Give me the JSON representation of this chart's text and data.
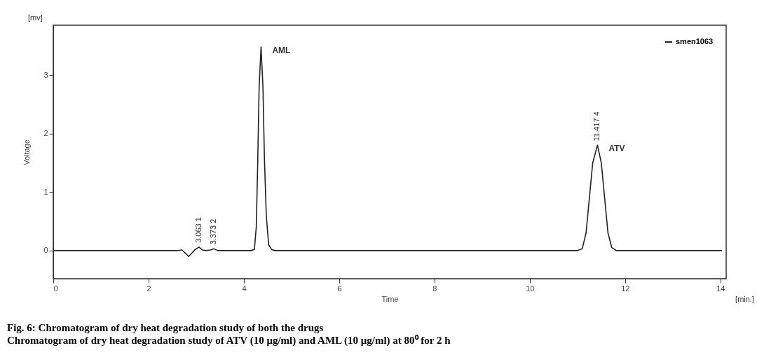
{
  "chart_data": {
    "type": "line",
    "title": "Fig. 6: Chromatogram of dry heat degradation study of both the drugs",
    "subtitle": "Chromatogram of dry heat degradation study of ATV (10 μg/ml) and AML (10 μg/ml) at 80⁰ for 2 h",
    "xlabel": "Time",
    "ylabel": "Voltage",
    "xlim": [
      0,
      14.12
    ],
    "xticks": [
      0,
      2,
      4,
      6,
      8,
      10,
      12,
      14
    ],
    "ylim": [
      -0.48,
      3.85
    ],
    "yticks": [
      0,
      1,
      2,
      3
    ],
    "grid": false,
    "legend": "top right",
    "marker": "none",
    "line_style": "solid",
    "series": [
      {
        "name": "smen1063",
        "color": "#222222",
        "x": [
          0,
          2.6,
          2.7,
          2.78,
          2.84,
          2.9,
          2.98,
          3.06,
          3.13,
          3.2,
          3.3,
          3.37,
          3.45,
          3.6,
          4.0,
          4.15,
          4.22,
          4.26,
          4.29,
          4.32,
          4.36,
          4.4,
          4.43,
          4.47,
          4.52,
          4.58,
          4.65,
          6,
          8,
          10,
          11.0,
          11.1,
          11.18,
          11.25,
          11.32,
          11.42,
          11.5,
          11.57,
          11.64,
          11.72,
          11.82,
          14.03
        ],
        "values": [
          0,
          0,
          0.01,
          -0.05,
          -0.1,
          -0.05,
          0.02,
          0.06,
          0.01,
          0.0,
          0.01,
          0.03,
          0.0,
          0.0,
          0.0,
          0.0,
          0.02,
          0.4,
          1.5,
          2.8,
          3.48,
          2.8,
          1.6,
          0.6,
          0.1,
          0.02,
          0,
          0,
          0,
          0,
          0,
          0.03,
          0.3,
          0.9,
          1.5,
          1.8,
          1.5,
          0.9,
          0.3,
          0.05,
          0,
          0
        ]
      }
    ],
    "annotations": [
      "[mv]",
      "[min.]",
      {
        "text": "3.063 1",
        "x": 3.063,
        "y": 0.06
      },
      {
        "text": "3.373 2",
        "x": 3.373,
        "y": 0.03
      },
      {
        "text": "11.417 4",
        "x": 11.417,
        "y": 1.8
      },
      {
        "text": "AML",
        "x": 4.36,
        "y": 3.48
      },
      {
        "text": "ATV",
        "x": 11.42,
        "y": 1.8
      }
    ]
  }
}
